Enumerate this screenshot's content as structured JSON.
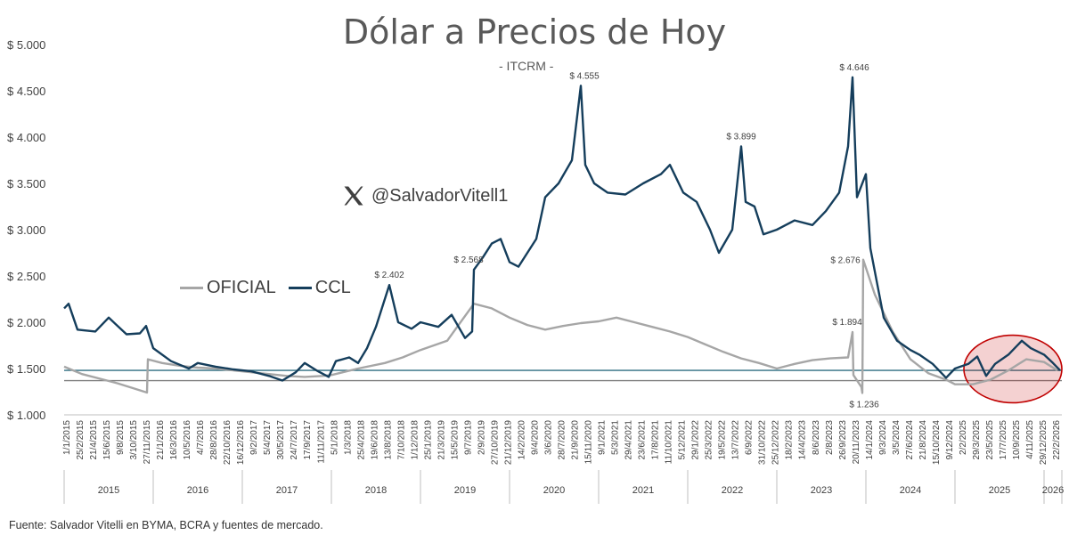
{
  "chart_data": {
    "type": "line",
    "title": "Dólar a Precios de Hoy",
    "subtitle": "- ITCRM -",
    "handle": "@SalvadorVitell1",
    "source": "Fuente: Salvador Vitelli en BYMA, BCRA y fuentes de mercado.",
    "y_ticks": [
      "$ 1.000",
      "$ 1.500",
      "$ 2.000",
      "$ 2.500",
      "$ 3.000",
      "$ 3.500",
      "$ 4.000",
      "$ 4.500",
      "$ 5.000"
    ],
    "ylim": [
      1000,
      5000
    ],
    "x_tick_labels": [
      "1/1/2015",
      "25/2/2015",
      "21/4/2015",
      "15/6/2015",
      "9/8/2015",
      "3/10/2015",
      "27/11/2015",
      "21/1/2016",
      "16/3/2016",
      "10/5/2016",
      "4/7/2016",
      "28/8/2016",
      "22/10/2016",
      "16/12/2016",
      "9/2/2017",
      "5/4/2017",
      "30/5/2017",
      "24/7/2017",
      "17/9/2017",
      "11/11/2017",
      "5/1/2018",
      "1/3/2018",
      "25/4/2018",
      "19/6/2018",
      "13/8/2018",
      "7/10/2018",
      "1/12/2018",
      "25/1/2019",
      "21/3/2019",
      "15/5/2019",
      "9/7/2019",
      "2/9/2019",
      "27/10/2019",
      "21/12/2019",
      "14/2/2020",
      "9/4/2020",
      "3/6/2020",
      "28/7/2020",
      "21/9/2020",
      "15/11/2020",
      "9/1/2021",
      "5/3/2021",
      "29/4/2021",
      "23/6/2021",
      "17/8/2021",
      "11/10/2021",
      "5/12/2021",
      "29/1/2022",
      "25/3/2022",
      "19/5/2022",
      "13/7/2022",
      "6/9/2022",
      "31/10/2022",
      "25/12/2022",
      "18/2/2023",
      "14/4/2023",
      "8/6/2023",
      "2/8/2023",
      "26/9/2023",
      "20/11/2023",
      "14/1/2024",
      "9/3/2024",
      "3/5/2024",
      "27/6/2024",
      "21/8/2024",
      "15/10/2024",
      "9/12/2024",
      "2/2/2025",
      "29/3/2025",
      "23/5/2025",
      "17/7/2025",
      "10/9/2025",
      "4/11/2025",
      "29/12/2025",
      "22/2/2026"
    ],
    "years": [
      "2015",
      "2016",
      "2017",
      "2018",
      "2019",
      "2020",
      "2021",
      "2022",
      "2023",
      "2024",
      "2025",
      "2026"
    ],
    "series": [
      {
        "name": "OFICIAL",
        "color": "#A6A6A6",
        "points": [
          [
            2015.0,
            1520
          ],
          [
            2015.2,
            1440
          ],
          [
            2015.4,
            1390
          ],
          [
            2015.6,
            1340
          ],
          [
            2015.8,
            1280
          ],
          [
            2015.93,
            1240
          ],
          [
            2015.94,
            1600
          ],
          [
            2016.1,
            1560
          ],
          [
            2016.3,
            1530
          ],
          [
            2016.5,
            1510
          ],
          [
            2016.7,
            1500
          ],
          [
            2016.9,
            1480
          ],
          [
            2017.1,
            1460
          ],
          [
            2017.3,
            1440
          ],
          [
            2017.5,
            1420
          ],
          [
            2017.7,
            1410
          ],
          [
            2017.9,
            1420
          ],
          [
            2018.0,
            1430
          ],
          [
            2018.3,
            1500
          ],
          [
            2018.6,
            1560
          ],
          [
            2018.8,
            1620
          ],
          [
            2019.0,
            1700
          ],
          [
            2019.3,
            1800
          ],
          [
            2019.6,
            2200
          ],
          [
            2019.8,
            2150
          ],
          [
            2020.0,
            2050
          ],
          [
            2020.2,
            1970
          ],
          [
            2020.4,
            1920
          ],
          [
            2020.6,
            1960
          ],
          [
            2020.8,
            1990
          ],
          [
            2021.0,
            2010
          ],
          [
            2021.2,
            2050
          ],
          [
            2021.4,
            2000
          ],
          [
            2021.6,
            1950
          ],
          [
            2021.8,
            1900
          ],
          [
            2022.0,
            1840
          ],
          [
            2022.2,
            1760
          ],
          [
            2022.4,
            1680
          ],
          [
            2022.6,
            1610
          ],
          [
            2022.8,
            1560
          ],
          [
            2023.0,
            1500
          ],
          [
            2023.2,
            1550
          ],
          [
            2023.4,
            1590
          ],
          [
            2023.6,
            1610
          ],
          [
            2023.8,
            1620
          ],
          [
            2023.85,
            1894
          ],
          [
            2023.86,
            1430
          ],
          [
            2023.95,
            1300
          ],
          [
            2023.96,
            1236
          ],
          [
            2023.97,
            2676
          ],
          [
            2024.1,
            2300
          ],
          [
            2024.3,
            1900
          ],
          [
            2024.5,
            1600
          ],
          [
            2024.7,
            1450
          ],
          [
            2024.9,
            1380
          ],
          [
            2025.0,
            1330
          ],
          [
            2025.2,
            1330
          ],
          [
            2025.4,
            1380
          ],
          [
            2025.6,
            1480
          ],
          [
            2025.8,
            1600
          ],
          [
            2026.0,
            1570
          ],
          [
            2026.15,
            1480
          ]
        ]
      },
      {
        "name": "CCL",
        "color": "#153E5C",
        "points": [
          [
            2015.0,
            2150
          ],
          [
            2015.05,
            2200
          ],
          [
            2015.15,
            1920
          ],
          [
            2015.35,
            1900
          ],
          [
            2015.5,
            2050
          ],
          [
            2015.7,
            1870
          ],
          [
            2015.85,
            1880
          ],
          [
            2015.92,
            1960
          ],
          [
            2016.0,
            1720
          ],
          [
            2016.2,
            1580
          ],
          [
            2016.4,
            1500
          ],
          [
            2016.5,
            1560
          ],
          [
            2016.7,
            1520
          ],
          [
            2016.9,
            1490
          ],
          [
            2017.1,
            1470
          ],
          [
            2017.3,
            1420
          ],
          [
            2017.45,
            1370
          ],
          [
            2017.6,
            1460
          ],
          [
            2017.7,
            1560
          ],
          [
            2017.85,
            1470
          ],
          [
            2017.97,
            1410
          ],
          [
            2018.05,
            1580
          ],
          [
            2018.2,
            1620
          ],
          [
            2018.3,
            1560
          ],
          [
            2018.4,
            1720
          ],
          [
            2018.5,
            1950
          ],
          [
            2018.65,
            2402
          ],
          [
            2018.75,
            2000
          ],
          [
            2018.9,
            1930
          ],
          [
            2019.0,
            2000
          ],
          [
            2019.2,
            1950
          ],
          [
            2019.35,
            2080
          ],
          [
            2019.5,
            1830
          ],
          [
            2019.58,
            1900
          ],
          [
            2019.6,
            2568
          ],
          [
            2019.7,
            2700
          ],
          [
            2019.8,
            2850
          ],
          [
            2019.9,
            2900
          ],
          [
            2020.0,
            2650
          ],
          [
            2020.1,
            2600
          ],
          [
            2020.2,
            2750
          ],
          [
            2020.3,
            2900
          ],
          [
            2020.4,
            3350
          ],
          [
            2020.55,
            3500
          ],
          [
            2020.7,
            3750
          ],
          [
            2020.8,
            4555
          ],
          [
            2020.85,
            3700
          ],
          [
            2020.95,
            3500
          ],
          [
            2021.1,
            3400
          ],
          [
            2021.3,
            3380
          ],
          [
            2021.5,
            3500
          ],
          [
            2021.7,
            3600
          ],
          [
            2021.8,
            3700
          ],
          [
            2021.95,
            3400
          ],
          [
            2022.1,
            3300
          ],
          [
            2022.25,
            3000
          ],
          [
            2022.35,
            2750
          ],
          [
            2022.5,
            3000
          ],
          [
            2022.6,
            3899
          ],
          [
            2022.65,
            3300
          ],
          [
            2022.75,
            3250
          ],
          [
            2022.85,
            2950
          ],
          [
            2023.0,
            3000
          ],
          [
            2023.2,
            3100
          ],
          [
            2023.4,
            3050
          ],
          [
            2023.55,
            3200
          ],
          [
            2023.7,
            3400
          ],
          [
            2023.8,
            3900
          ],
          [
            2023.85,
            4646
          ],
          [
            2023.9,
            3350
          ],
          [
            2024.0,
            3600
          ],
          [
            2024.05,
            2800
          ],
          [
            2024.2,
            2050
          ],
          [
            2024.35,
            1800
          ],
          [
            2024.5,
            1700
          ],
          [
            2024.6,
            1650
          ],
          [
            2024.75,
            1550
          ],
          [
            2024.9,
            1400
          ],
          [
            2025.0,
            1500
          ],
          [
            2025.15,
            1550
          ],
          [
            2025.25,
            1630
          ],
          [
            2025.35,
            1420
          ],
          [
            2025.45,
            1550
          ],
          [
            2025.6,
            1650
          ],
          [
            2025.75,
            1800
          ],
          [
            2025.85,
            1720
          ],
          [
            2026.0,
            1650
          ],
          [
            2026.1,
            1560
          ],
          [
            2026.18,
            1480
          ]
        ]
      }
    ],
    "hlines": [
      1480,
      1370
    ],
    "annotations": [
      {
        "text": "$ 2.402",
        "x": 2018.65,
        "y": 2402
      },
      {
        "text": "$ 2.568",
        "x": 2019.6,
        "y": 2568
      },
      {
        "text": "$ 4.555",
        "x": 2020.8,
        "y": 4555
      },
      {
        "text": "$ 3.899",
        "x": 2022.6,
        "y": 3899
      },
      {
        "text": "$ 4.646",
        "x": 2023.85,
        "y": 4646
      },
      {
        "text": "$ 2.676",
        "x": 2023.97,
        "y": 2676
      },
      {
        "text": "$ 1.894",
        "x": 2023.85,
        "y": 1894
      },
      {
        "text": "$ 1.236",
        "x": 2023.96,
        "y": 1236
      }
    ],
    "highlight": {
      "x": [
        2025.1,
        2026.2
      ],
      "y": [
        1130,
        1860
      ],
      "color": "#C00000"
    },
    "grid": false,
    "legend": "left-center"
  }
}
